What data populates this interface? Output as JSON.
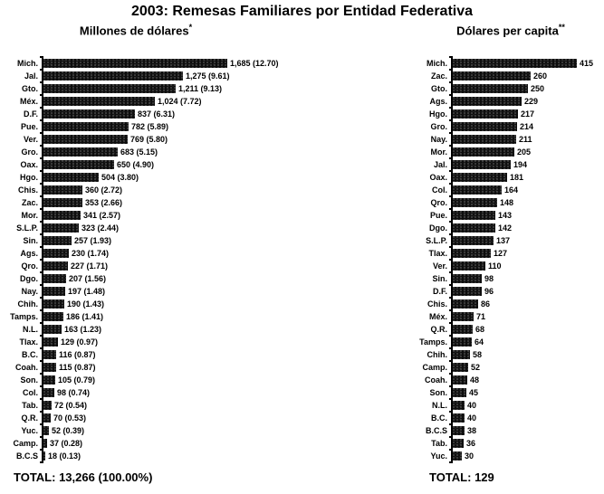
{
  "title": "2003: Remesas Familiares por Entidad Federativa",
  "colors": {
    "background": "#ffffff",
    "bar": "#0e0e0e",
    "bar_speckle": "#4d4d4d",
    "text": "#000000",
    "axis": "#000000"
  },
  "chart_data": [
    {
      "type": "bar",
      "orientation": "horizontal",
      "title": "Millones de dólares",
      "title_mark": "*",
      "xlim": [
        0,
        1685
      ],
      "grid": false,
      "legend": false,
      "categories": [
        "Mich.",
        "Jal.",
        "Gto.",
        "Méx.",
        "D.F.",
        "Pue.",
        "Ver.",
        "Gro.",
        "Oax.",
        "Hgo.",
        "Chis.",
        "Zac.",
        "Mor.",
        "S.L.P.",
        "Sin.",
        "Ags.",
        "Qro.",
        "Dgo.",
        "Nay.",
        "Chih.",
        "Tamps.",
        "N.L.",
        "Tlax.",
        "B.C.",
        "Coah.",
        "Son.",
        "Col.",
        "Tab.",
        "Q.R.",
        "Yuc.",
        "Camp.",
        "B.C.S"
      ],
      "values": [
        1685,
        1275,
        1211,
        1024,
        837,
        782,
        769,
        683,
        650,
        504,
        360,
        353,
        341,
        323,
        257,
        230,
        227,
        207,
        197,
        190,
        186,
        163,
        129,
        116,
        115,
        105,
        98,
        72,
        70,
        52,
        37,
        18
      ],
      "percentages": [
        12.7,
        9.61,
        9.13,
        7.72,
        6.31,
        5.89,
        5.8,
        5.15,
        4.9,
        3.8,
        2.72,
        2.66,
        2.57,
        2.44,
        1.93,
        1.74,
        1.71,
        1.56,
        1.48,
        1.43,
        1.41,
        1.23,
        0.97,
        0.87,
        0.87,
        0.79,
        0.74,
        0.54,
        0.53,
        0.39,
        0.28,
        0.13
      ],
      "value_labels": [
        "1,685 (12.70)",
        "1,275 (9.61)",
        "1,211 (9.13)",
        "1,024 (7.72)",
        "837 (6.31)",
        "782 (5.89)",
        "769 (5.80)",
        "683 (5.15)",
        "650 (4.90)",
        "504 (3.80)",
        "360 (2.72)",
        "353 (2.66)",
        "341 (2.57)",
        "323 (2.44)",
        "257 (1.93)",
        "230 (1.74)",
        "227 (1.71)",
        "207 (1.56)",
        "197 (1.48)",
        "190 (1.43)",
        "186 (1.41)",
        "163 (1.23)",
        "129 (0.97)",
        "116 (0.87)",
        "115 (0.87)",
        "105 (0.79)",
        "98 (0.74)",
        "72 (0.54)",
        "70 (0.53)",
        "52 (0.39)",
        "37 (0.28)",
        "18 (0.13)"
      ],
      "total_label": "TOTAL: 13,266 (100.00%)"
    },
    {
      "type": "bar",
      "orientation": "horizontal",
      "title": "Dólares per capita",
      "title_mark": "**",
      "xlim": [
        0,
        415
      ],
      "grid": false,
      "legend": false,
      "categories": [
        "Mich.",
        "Zac.",
        "Gto.",
        "Ags.",
        "Hgo.",
        "Gro.",
        "Nay.",
        "Mor.",
        "Jal.",
        "Oax.",
        "Col.",
        "Qro.",
        "Pue.",
        "Dgo.",
        "S.L.P.",
        "Tlax.",
        "Ver.",
        "Sin.",
        "D.F.",
        "Chis.",
        "Méx.",
        "Q.R.",
        "Tamps.",
        "Chih.",
        "Camp.",
        "Coah.",
        "Son.",
        "N.L.",
        "B.C.",
        "B.C.S",
        "Tab.",
        "Yuc."
      ],
      "values": [
        415,
        260,
        250,
        229,
        217,
        214,
        211,
        205,
        194,
        181,
        164,
        148,
        143,
        142,
        137,
        127,
        110,
        98,
        96,
        86,
        71,
        68,
        64,
        58,
        52,
        48,
        45,
        40,
        40,
        38,
        36,
        30
      ],
      "value_labels": [
        "415",
        "260",
        "250",
        "229",
        "217",
        "214",
        "211",
        "205",
        "194",
        "181",
        "164",
        "148",
        "143",
        "142",
        "137",
        "127",
        "110",
        "98",
        "96",
        "86",
        "71",
        "68",
        "64",
        "58",
        "52",
        "48",
        "45",
        "40",
        "40",
        "38",
        "36",
        "30"
      ],
      "total_label": "TOTAL: 129"
    }
  ]
}
